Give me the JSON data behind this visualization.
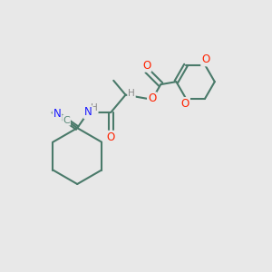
{
  "background_color": "#e8e8e8",
  "bond_color": "#4a7a6a",
  "bond_width": 1.5,
  "atom_colors": {
    "N": "#1a1aff",
    "O": "#ff2200",
    "C_label": "#5a8a7a",
    "H": "#888888"
  },
  "figsize": [
    3.0,
    3.0
  ],
  "dpi": 100
}
